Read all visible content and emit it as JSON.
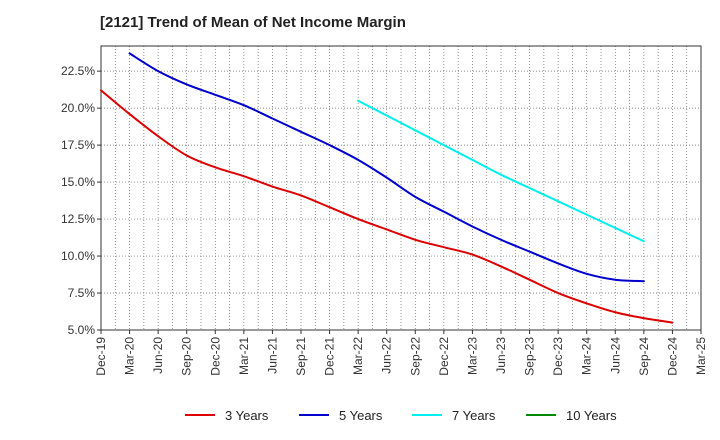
{
  "title": "[2121]  Trend of Mean of Net Income Margin",
  "chart_data": {
    "type": "line",
    "title": "[2121]  Trend of Mean of Net Income Margin",
    "xlabel": "",
    "ylabel": "",
    "x_ticks": [
      "Dec-19",
      "Mar-20",
      "Jun-20",
      "Sep-20",
      "Dec-20",
      "Mar-21",
      "Jun-21",
      "Sep-21",
      "Dec-21",
      "Mar-22",
      "Jun-22",
      "Sep-22",
      "Dec-22",
      "Mar-23",
      "Jun-23",
      "Sep-23",
      "Dec-23",
      "Mar-24",
      "Jun-24",
      "Sep-24",
      "Dec-24",
      "Mar-25"
    ],
    "y_ticks": [
      "5.0%",
      "7.5%",
      "10.0%",
      "12.5%",
      "15.0%",
      "17.5%",
      "20.0%",
      "22.5%"
    ],
    "ylim": [
      5.0,
      24.2
    ],
    "y_unit": "%",
    "grid": true,
    "legend_position": "bottom",
    "series": [
      {
        "name": "3 Years",
        "color": "#dd0000",
        "start_index": 0,
        "values": [
          21.2,
          19.6,
          18.1,
          16.8,
          16.0,
          15.4,
          14.7,
          14.1,
          13.3,
          12.5,
          11.8,
          11.1,
          10.6,
          10.1,
          9.3,
          8.4,
          7.5,
          6.8,
          6.2,
          5.8,
          5.5
        ]
      },
      {
        "name": "5 Years",
        "color": "#0000cc",
        "start_index": 1,
        "values": [
          23.7,
          22.5,
          21.6,
          20.9,
          20.2,
          19.3,
          18.4,
          17.5,
          16.5,
          15.3,
          14.0,
          13.0,
          12.0,
          11.1,
          10.3,
          9.5,
          8.8,
          8.4,
          8.3
        ]
      },
      {
        "name": "7 Years",
        "color": "#00eeee",
        "start_index": 9,
        "values": [
          20.5,
          19.5,
          18.5,
          17.5,
          16.5,
          15.5,
          14.6,
          13.7,
          12.8,
          11.9,
          11.0
        ]
      },
      {
        "name": "10 Years",
        "color": "#008800",
        "start_index": 0,
        "values": []
      }
    ]
  }
}
